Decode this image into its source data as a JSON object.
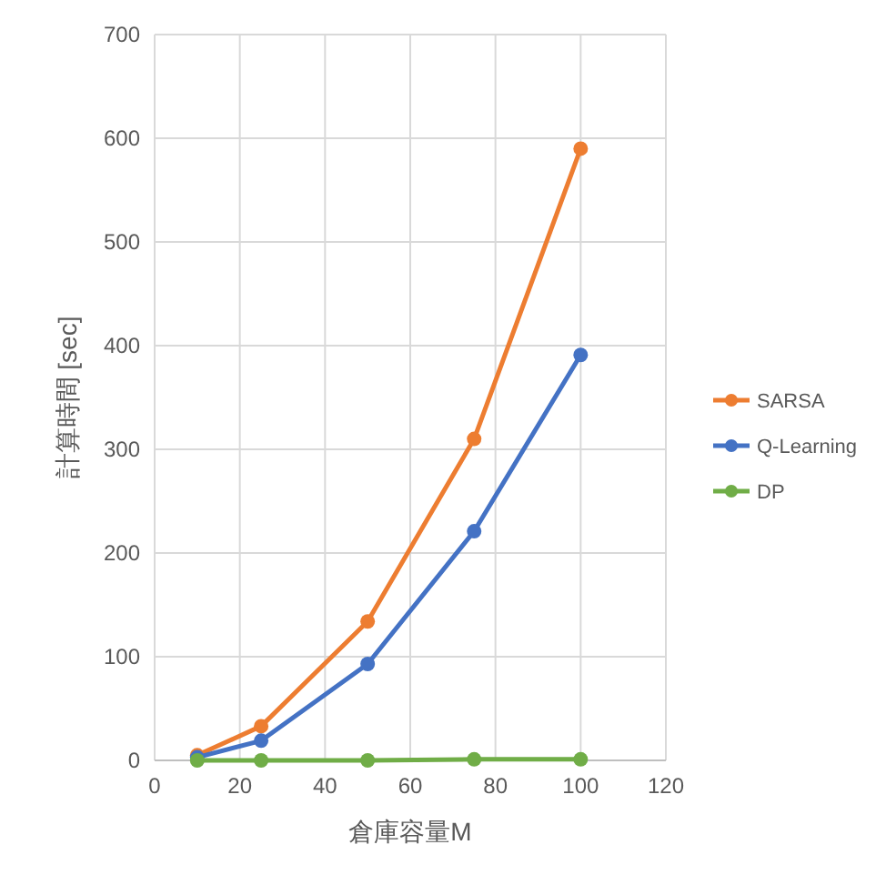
{
  "chart_data": {
    "type": "line",
    "xlabel": "倉庫容量M",
    "ylabel": "計算時間 [sec]",
    "x": [
      10,
      25,
      50,
      75,
      100
    ],
    "series": [
      {
        "name": "SARSA",
        "color": "#ed7d31",
        "values": [
          5,
          33,
          134,
          310,
          590
        ]
      },
      {
        "name": "Q-Learning",
        "color": "#4472c4",
        "values": [
          3,
          19,
          93,
          221,
          391
        ]
      },
      {
        "name": "DP",
        "color": "#70ad47",
        "values": [
          0,
          0,
          0,
          1,
          1
        ]
      }
    ],
    "xlim": [
      0,
      120
    ],
    "xticks": [
      0,
      20,
      40,
      60,
      80,
      100,
      120
    ],
    "ylim": [
      0,
      700
    ],
    "yticks": [
      0,
      100,
      200,
      300,
      400,
      500,
      600,
      700
    ],
    "grid": true,
    "legend": "right",
    "marker": "circle",
    "line_style": "solid"
  }
}
